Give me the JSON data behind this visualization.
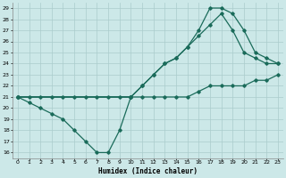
{
  "xlabel": "Humidex (Indice chaleur)",
  "background_color": "#cce8e8",
  "grid_color": "#aacccc",
  "line_color": "#1a6b5a",
  "xlim": [
    -0.5,
    23.5
  ],
  "ylim": [
    15.5,
    29.5
  ],
  "xticks": [
    0,
    1,
    2,
    3,
    4,
    5,
    6,
    7,
    8,
    9,
    10,
    11,
    12,
    13,
    14,
    15,
    16,
    17,
    18,
    19,
    20,
    21,
    22,
    23
  ],
  "yticks": [
    16,
    17,
    18,
    19,
    20,
    21,
    22,
    23,
    24,
    25,
    26,
    27,
    28,
    29
  ],
  "line_dip_x": [
    0,
    1,
    2,
    3,
    4,
    5,
    6,
    7,
    8,
    9,
    10
  ],
  "line_dip_y": [
    21,
    20.5,
    20,
    19.5,
    19,
    18,
    17,
    16,
    16,
    18,
    21
  ],
  "line_flat_x": [
    0,
    1,
    2,
    3,
    4,
    5,
    6,
    7,
    8,
    9,
    10,
    11,
    12,
    13,
    14,
    15,
    16,
    17,
    18,
    19,
    20,
    21,
    22,
    23
  ],
  "line_flat_y": [
    21,
    21,
    21,
    21,
    21,
    21,
    21,
    21,
    21,
    21,
    21,
    21,
    21,
    21,
    21,
    21,
    21.5,
    22,
    22,
    22,
    22,
    22.5,
    22.5,
    23
  ],
  "line_mid_x": [
    0,
    10,
    11,
    12,
    13,
    14,
    15,
    16,
    17,
    18,
    19,
    20,
    21,
    22,
    23
  ],
  "line_mid_y": [
    21,
    21,
    22,
    23,
    24,
    24.5,
    25.5,
    26.5,
    27.5,
    28.5,
    27,
    25,
    24.5,
    24,
    24
  ],
  "line_top_x": [
    0,
    10,
    11,
    12,
    13,
    14,
    15,
    16,
    17,
    18,
    19,
    20,
    21,
    22,
    23
  ],
  "line_top_y": [
    21,
    21,
    22,
    23,
    24,
    24.5,
    25.5,
    27,
    29,
    29,
    28.5,
    27,
    25,
    24.5,
    24
  ]
}
